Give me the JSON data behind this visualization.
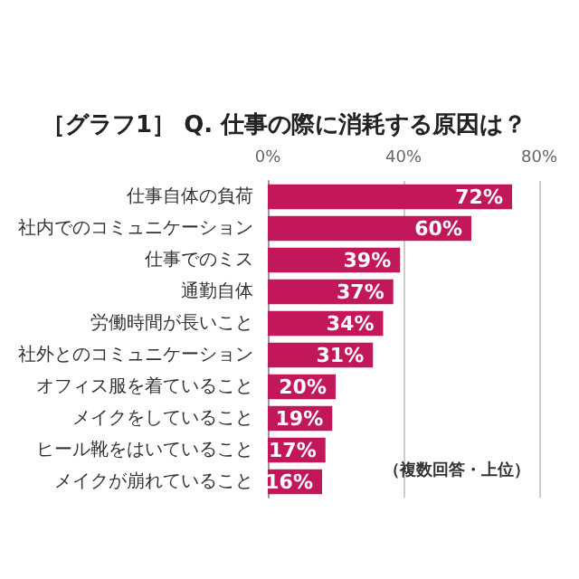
{
  "chart_data": {
    "type": "bar",
    "orientation": "horizontal",
    "title": "［グラフ1］ Q. 仕事の際に消耗する原因は？",
    "categories": [
      "仕事自体の負荷",
      "社内でのコミュニケーション",
      "仕事でのミス",
      "通勤自体",
      "労働時間が長いこと",
      "社外とのコミュニケーション",
      "オフィス服を着ていること",
      "メイクをしていること",
      "ヒール靴をはいていること",
      "メイクが崩れていること"
    ],
    "values": [
      72,
      60,
      39,
      37,
      34,
      31,
      20,
      19,
      17,
      16
    ],
    "value_labels": [
      "72%",
      "60%",
      "39%",
      "37%",
      "34%",
      "31%",
      "20%",
      "19%",
      "17%",
      "16%"
    ],
    "color": "#c2185b",
    "xlim": [
      0,
      80
    ],
    "xticks": [
      {
        "value": 0,
        "label": "0%"
      },
      {
        "value": 40,
        "label": "40%"
      },
      {
        "value": 80,
        "label": "80%"
      }
    ],
    "grid": "x",
    "annotations": [
      "（複数回答・上位）"
    ]
  }
}
